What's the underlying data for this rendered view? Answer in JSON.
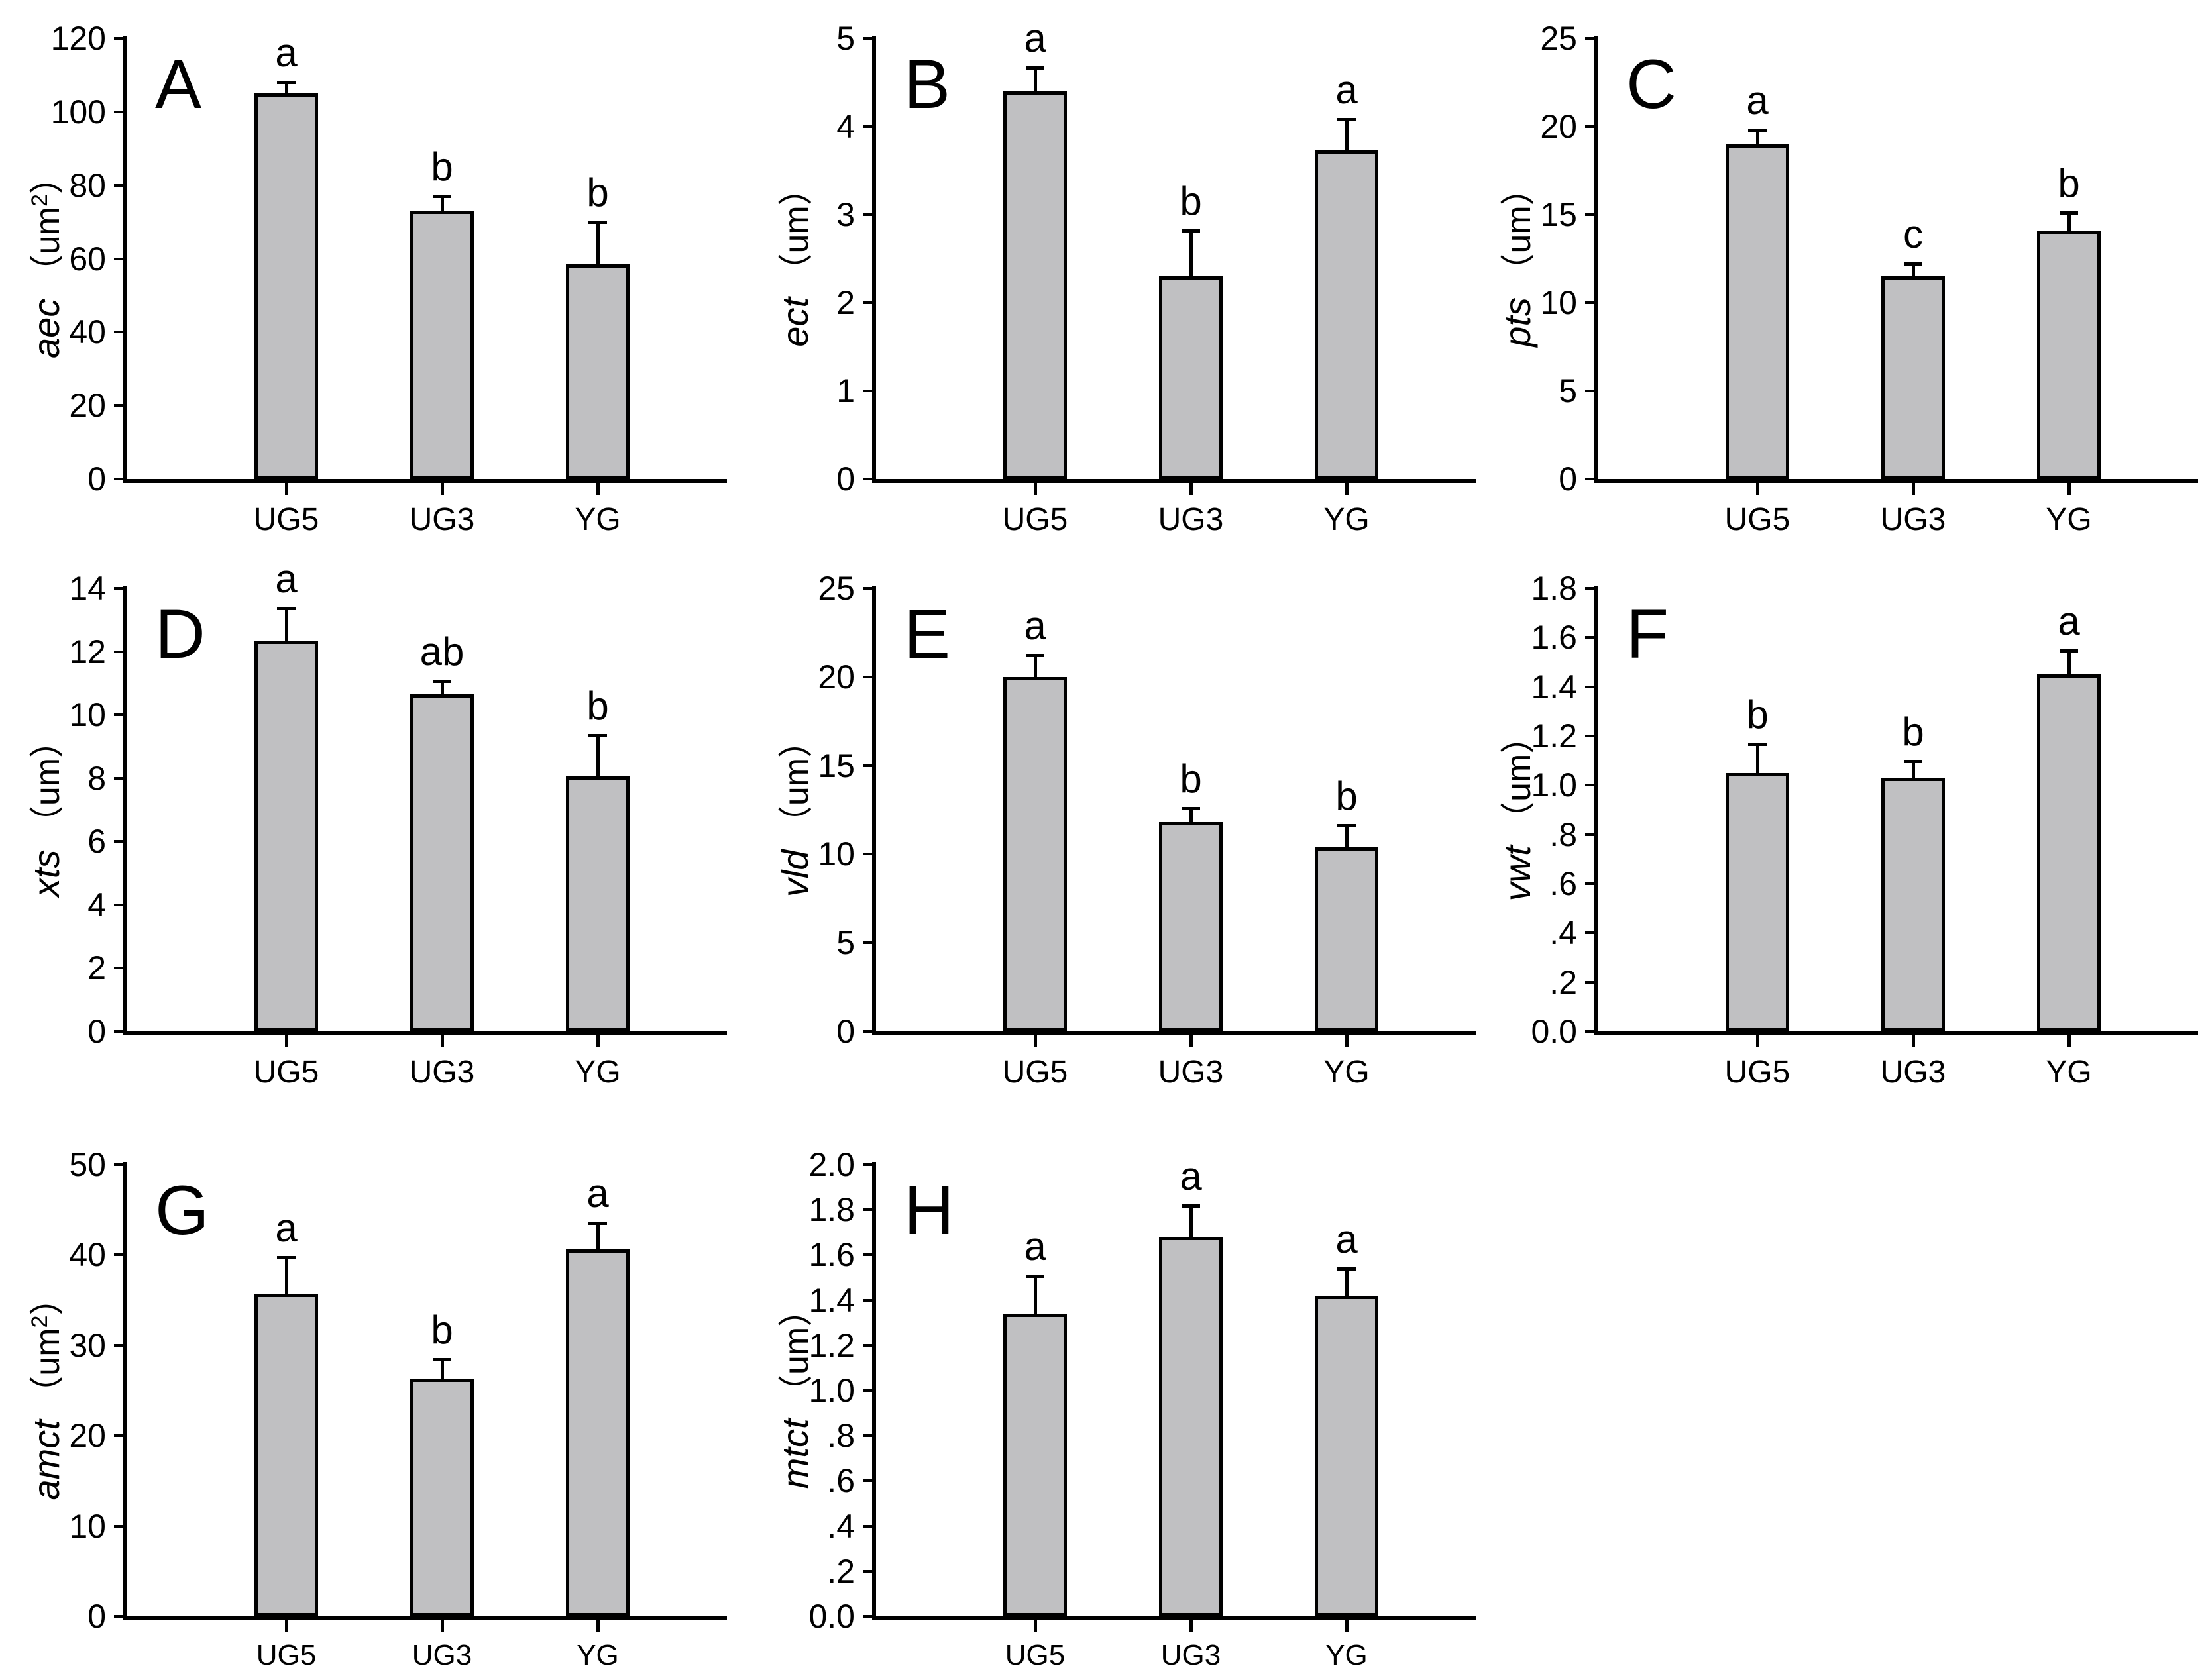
{
  "figure": {
    "background": "#ffffff",
    "bar_fill": "#c0c0c2",
    "bar_edge": "#000000",
    "groups": [
      "UG5",
      "UG3",
      "YG"
    ]
  },
  "chart_data": [
    {
      "type": "bar",
      "panel": "A",
      "ylabel_var": "aec",
      "unit_open": "（",
      "unit": "um",
      "unit_sup": "2",
      "unit_close": "）",
      "ylim": [
        0,
        120
      ],
      "ytick_labels": [
        "0",
        "20",
        "40",
        "60",
        "80",
        "100",
        "120"
      ],
      "categories": [
        "UG5",
        "UG3",
        "YG"
      ],
      "values": [
        105,
        73,
        58.5
      ],
      "errors_plus": [
        2.5,
        3.5,
        11
      ],
      "sig_letters": [
        "a",
        "b",
        "b"
      ],
      "grid": false,
      "legend": "none"
    },
    {
      "type": "bar",
      "panel": "B",
      "ylabel_var": "ect",
      "unit_open": "（",
      "unit": "um",
      "unit_sup": "",
      "unit_close": "）",
      "ylim": [
        0,
        5
      ],
      "ytick_labels": [
        "0",
        "1",
        "2",
        "3",
        "4",
        "5"
      ],
      "categories": [
        "UG5",
        "UG3",
        "YG"
      ],
      "values": [
        4.4,
        2.3,
        3.73
      ],
      "errors_plus": [
        0.25,
        0.5,
        0.33
      ],
      "sig_letters": [
        "a",
        "b",
        "a"
      ],
      "grid": false,
      "legend": "none"
    },
    {
      "type": "bar",
      "panel": "C",
      "ylabel_var": "pts",
      "unit_open": "（",
      "unit": "um",
      "unit_sup": "",
      "unit_close": "）",
      "ylim": [
        0,
        25
      ],
      "ytick_labels": [
        "0",
        "5",
        "10",
        "15",
        "20",
        "25"
      ],
      "categories": [
        "UG5",
        "UG3",
        "YG"
      ],
      "values": [
        19,
        11.5,
        14.1
      ],
      "errors_plus": [
        0.7,
        0.6,
        0.9
      ],
      "sig_letters": [
        "a",
        "c",
        "b"
      ],
      "grid": false,
      "legend": "none"
    },
    {
      "type": "bar",
      "panel": "D",
      "ylabel_var": "xts",
      "unit_open": "（",
      "unit": "um",
      "unit_sup": "",
      "unit_close": "）",
      "ylim": [
        0,
        14
      ],
      "ytick_labels": [
        "0",
        "2",
        "4",
        "6",
        "8",
        "10",
        "12",
        "14"
      ],
      "categories": [
        "UG5",
        "UG3",
        "YG"
      ],
      "values": [
        12.35,
        10.65,
        8.05
      ],
      "errors_plus": [
        0.95,
        0.35,
        1.25
      ],
      "sig_letters": [
        "a",
        "ab",
        "b"
      ],
      "grid": false,
      "legend": "none"
    },
    {
      "type": "bar",
      "panel": "E",
      "ylabel_var": "vld",
      "unit_open": "（",
      "unit": "um",
      "unit_sup": "",
      "unit_close": "）",
      "ylim": [
        0,
        25
      ],
      "ytick_labels": [
        "0",
        "5",
        "10",
        "15",
        "20",
        "25"
      ],
      "categories": [
        "UG5",
        "UG3",
        "YG"
      ],
      "values": [
        20,
        11.8,
        10.4
      ],
      "errors_plus": [
        1.1,
        0.7,
        1.1
      ],
      "sig_letters": [
        "a",
        "b",
        "b"
      ],
      "grid": false,
      "legend": "none"
    },
    {
      "type": "bar",
      "panel": "F",
      "ylabel_var": "vwt",
      "unit_open": "（",
      "unit": "um",
      "unit_sup": "",
      "unit_close": "）",
      "ylim": [
        0,
        1.8
      ],
      "ytick_labels": [
        "0.0",
        ".2",
        ".4",
        ".6",
        ".8",
        "1.0",
        "1.2",
        "1.4",
        "1.6",
        "1.8"
      ],
      "categories": [
        "UG5",
        "UG3",
        "YG"
      ],
      "values": [
        1.05,
        1.03,
        1.45
      ],
      "errors_plus": [
        0.11,
        0.06,
        0.09
      ],
      "sig_letters": [
        "b",
        "b",
        "a"
      ],
      "grid": false,
      "legend": "none"
    },
    {
      "type": "bar",
      "panel": "G",
      "ylabel_var": "amct",
      "unit_open": "（",
      "unit": "um",
      "unit_sup": "2",
      "unit_close": "）",
      "ylim": [
        0,
        50
      ],
      "ytick_labels": [
        "0",
        "10",
        "20",
        "30",
        "40",
        "50"
      ],
      "categories": [
        "UG5",
        "UG3",
        "YG"
      ],
      "values": [
        35.7,
        26.3,
        40.6
      ],
      "errors_plus": [
        3.8,
        1.9,
        2.7
      ],
      "sig_letters": [
        "a",
        "b",
        "a"
      ],
      "grid": false,
      "legend": "none"
    },
    {
      "type": "bar",
      "panel": "H",
      "ylabel_var": "mtct",
      "unit_open": "（",
      "unit": "um",
      "unit_sup": "",
      "unit_close": "）",
      "ylim": [
        0,
        2.0
      ],
      "ytick_labels": [
        "0.0",
        ".2",
        ".4",
        ".6",
        ".8",
        "1.0",
        "1.2",
        "1.4",
        "1.6",
        "1.8",
        "2.0"
      ],
      "categories": [
        "UG5",
        "UG3",
        "YG"
      ],
      "values": [
        1.34,
        1.68,
        1.42
      ],
      "errors_plus": [
        0.16,
        0.13,
        0.11
      ],
      "sig_letters": [
        "a",
        "a",
        "a"
      ],
      "grid": false,
      "legend": "none"
    }
  ]
}
